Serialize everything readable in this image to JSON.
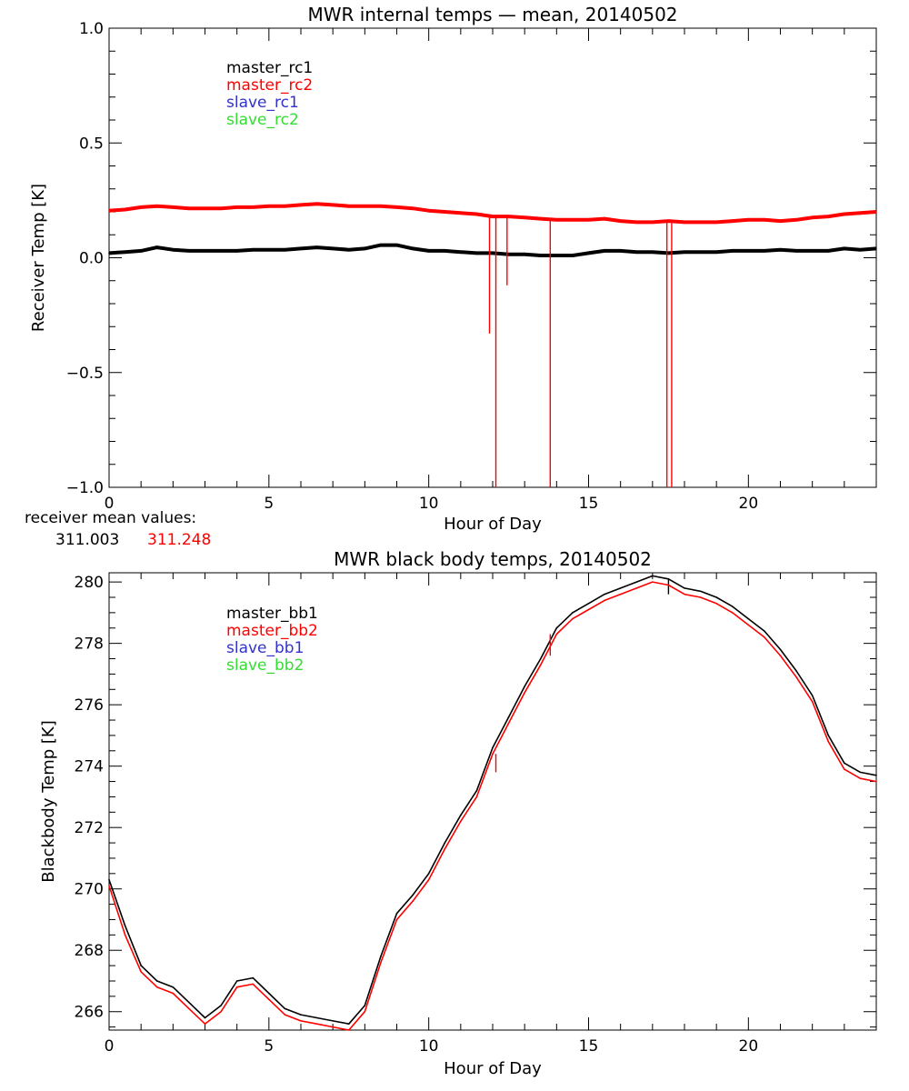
{
  "chart_data": [
    {
      "type": "line",
      "title": "MWR internal temps — mean, 20140502",
      "xlabel": "Hour of Day",
      "ylabel": "Receiver Temp [K]",
      "xlim": [
        0,
        24
      ],
      "ylim": [
        -1.0,
        1.0
      ],
      "xticks": [
        0,
        5,
        10,
        15,
        20
      ],
      "yticks": [
        -1.0,
        -0.5,
        0.0,
        0.5,
        1.0
      ],
      "ytick_labels": [
        "−1.0",
        "−0.5",
        "0.0",
        "0.5",
        "1.0"
      ],
      "legend_position": "top-left",
      "legend": [
        {
          "label": "master_rc1",
          "color": "#000000"
        },
        {
          "label": "master_rc2",
          "color": "#ff0000"
        },
        {
          "label": "slave_rc1",
          "color": "#3333cc"
        },
        {
          "label": "slave_rc2",
          "color": "#33dd33"
        }
      ],
      "series": [
        {
          "name": "master_rc1",
          "color": "#000000",
          "x": [
            0,
            0.5,
            1,
            1.5,
            2,
            2.5,
            3,
            3.5,
            4,
            4.5,
            5,
            5.5,
            6,
            6.5,
            7,
            7.5,
            8,
            8.5,
            9,
            9.5,
            10,
            10.5,
            11,
            11.5,
            12,
            12.5,
            13,
            13.5,
            14,
            14.5,
            15,
            15.5,
            16,
            16.5,
            17,
            17.5,
            18,
            18.5,
            19,
            19.5,
            20,
            20.5,
            21,
            21.5,
            22,
            22.5,
            23,
            23.5,
            24
          ],
          "y": [
            0.02,
            0.025,
            0.03,
            0.045,
            0.035,
            0.03,
            0.03,
            0.03,
            0.03,
            0.035,
            0.035,
            0.035,
            0.04,
            0.045,
            0.04,
            0.035,
            0.04,
            0.055,
            0.055,
            0.04,
            0.03,
            0.03,
            0.025,
            0.02,
            0.02,
            0.015,
            0.015,
            0.01,
            0.01,
            0.01,
            0.02,
            0.03,
            0.03,
            0.025,
            0.025,
            0.02,
            0.025,
            0.025,
            0.025,
            0.03,
            0.03,
            0.03,
            0.035,
            0.03,
            0.03,
            0.03,
            0.04,
            0.035,
            0.04
          ],
          "spikes": []
        },
        {
          "name": "master_rc2",
          "color": "#ff0000",
          "x": [
            0,
            0.5,
            1,
            1.5,
            2,
            2.5,
            3,
            3.5,
            4,
            4.5,
            5,
            5.5,
            6,
            6.5,
            7,
            7.5,
            8,
            8.5,
            9,
            9.5,
            10,
            10.5,
            11,
            11.5,
            12,
            12.5,
            13,
            13.5,
            14,
            14.5,
            15,
            15.5,
            16,
            16.5,
            17,
            17.5,
            18,
            18.5,
            19,
            19.5,
            20,
            20.5,
            21,
            21.5,
            22,
            22.5,
            23,
            23.5,
            24
          ],
          "y": [
            0.205,
            0.21,
            0.22,
            0.225,
            0.22,
            0.215,
            0.215,
            0.215,
            0.22,
            0.22,
            0.225,
            0.225,
            0.23,
            0.235,
            0.23,
            0.225,
            0.225,
            0.225,
            0.22,
            0.215,
            0.205,
            0.2,
            0.195,
            0.19,
            0.18,
            0.18,
            0.175,
            0.17,
            0.165,
            0.165,
            0.165,
            0.17,
            0.16,
            0.155,
            0.155,
            0.16,
            0.155,
            0.155,
            0.155,
            0.16,
            0.165,
            0.165,
            0.16,
            0.165,
            0.175,
            0.18,
            0.19,
            0.195,
            0.2
          ],
          "spikes": [
            {
              "x": 11.9,
              "y": -0.33
            },
            {
              "x": 12.1,
              "y": -1.0
            },
            {
              "x": 12.45,
              "y": -0.12
            },
            {
              "x": 13.8,
              "y": -1.0
            },
            {
              "x": 17.45,
              "y": -1.0
            },
            {
              "x": 17.6,
              "y": -1.0
            }
          ]
        },
        {
          "name": "slave_rc1",
          "color": "#3333cc",
          "x": [],
          "y": [],
          "spikes": []
        },
        {
          "name": "slave_rc2",
          "color": "#33dd33",
          "x": [],
          "y": [],
          "spikes": []
        }
      ]
    },
    {
      "type": "line",
      "title": "MWR black body temps, 20140502",
      "xlabel": "Hour of Day",
      "ylabel": "Blackbody Temp [K]",
      "xlim": [
        0,
        24
      ],
      "ylim": [
        265.4,
        280.3
      ],
      "xticks": [
        0,
        5,
        10,
        15,
        20
      ],
      "yticks": [
        266,
        268,
        270,
        272,
        274,
        276,
        278,
        280
      ],
      "ytick_labels": [
        "266",
        "268",
        "270",
        "272",
        "274",
        "276",
        "278",
        "280"
      ],
      "legend_position": "top-left",
      "legend": [
        {
          "label": "master_bb1",
          "color": "#000000"
        },
        {
          "label": "master_bb2",
          "color": "#ff0000"
        },
        {
          "label": "slave_bb1",
          "color": "#3333cc"
        },
        {
          "label": "slave_bb2",
          "color": "#33dd33"
        }
      ],
      "series": [
        {
          "name": "master_bb1",
          "color": "#000000",
          "x": [
            0,
            0.5,
            1,
            1.5,
            2,
            2.5,
            3,
            3.5,
            4,
            4.5,
            5,
            5.5,
            6,
            6.5,
            7,
            7.5,
            8,
            8.5,
            9,
            9.5,
            10,
            10.5,
            11,
            11.5,
            12,
            12.5,
            13,
            13.5,
            14,
            14.5,
            15,
            15.5,
            16,
            16.5,
            17,
            17.5,
            18,
            18.5,
            19,
            19.5,
            20,
            20.5,
            21,
            21.5,
            22,
            22.5,
            23,
            23.5,
            24
          ],
          "y": [
            270.3,
            268.8,
            267.5,
            267.0,
            266.8,
            266.3,
            265.8,
            266.2,
            267.0,
            267.1,
            266.6,
            266.1,
            265.9,
            265.8,
            265.7,
            265.6,
            266.2,
            267.8,
            269.2,
            269.8,
            270.5,
            271.5,
            272.4,
            273.2,
            274.6,
            275.6,
            276.6,
            277.5,
            278.5,
            279.0,
            279.3,
            279.6,
            279.8,
            280.0,
            280.2,
            280.1,
            279.8,
            279.7,
            279.5,
            279.2,
            278.8,
            278.4,
            277.8,
            277.1,
            276.3,
            275.0,
            274.1,
            273.8,
            273.7
          ],
          "spikes": [
            {
              "x": 17.5,
              "y": 279.6
            }
          ]
        },
        {
          "name": "master_bb2",
          "color": "#ff0000",
          "x": [
            0,
            0.5,
            1,
            1.5,
            2,
            2.5,
            3,
            3.5,
            4,
            4.5,
            5,
            5.5,
            6,
            6.5,
            7,
            7.5,
            8,
            8.5,
            9,
            9.5,
            10,
            10.5,
            11,
            11.5,
            12,
            12.5,
            13,
            13.5,
            14,
            14.5,
            15,
            15.5,
            16,
            16.5,
            17,
            17.5,
            18,
            18.5,
            19,
            19.5,
            20,
            20.5,
            21,
            21.5,
            22,
            22.5,
            23,
            23.5,
            24
          ],
          "y": [
            270.1,
            268.5,
            267.3,
            266.8,
            266.6,
            266.1,
            265.6,
            266.0,
            266.8,
            266.9,
            266.4,
            265.9,
            265.7,
            265.6,
            265.5,
            265.4,
            266.0,
            267.6,
            269.0,
            269.6,
            270.3,
            271.3,
            272.2,
            273.0,
            274.4,
            275.4,
            276.4,
            277.3,
            278.3,
            278.8,
            279.1,
            279.4,
            279.6,
            279.8,
            280.0,
            279.9,
            279.6,
            279.5,
            279.3,
            279.0,
            278.6,
            278.2,
            277.6,
            276.9,
            276.1,
            274.8,
            273.9,
            273.6,
            273.5
          ],
          "spikes": [
            {
              "x": 12.1,
              "y": 273.8
            },
            {
              "x": 13.8,
              "y": 277.6
            }
          ]
        },
        {
          "name": "slave_bb1",
          "color": "#3333cc",
          "x": [],
          "y": [],
          "spikes": []
        },
        {
          "name": "slave_bb2",
          "color": "#33dd33",
          "x": [],
          "y": [],
          "spikes": []
        }
      ]
    }
  ],
  "receiver_mean": {
    "label": "receiver mean values:",
    "values": [
      {
        "text": "311.003",
        "color": "#000000"
      },
      {
        "text": "311.248",
        "color": "#ff0000"
      }
    ]
  }
}
